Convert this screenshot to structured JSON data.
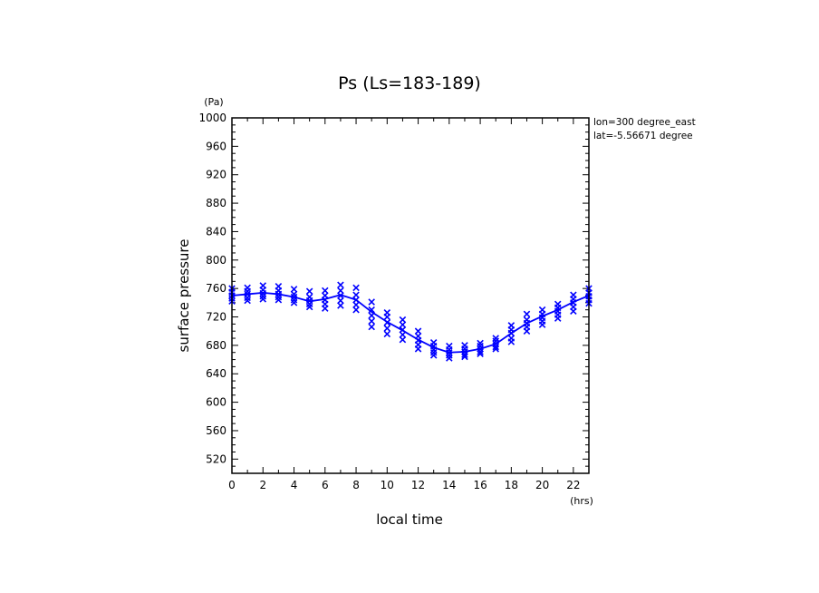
{
  "chart_data": {
    "type": "scatter",
    "title": "Ps (Ls=183-189)",
    "xlabel": "local time",
    "ylabel": "surface pressure",
    "x_unit": "(hrs)",
    "y_unit": "(Pa)",
    "xlim": [
      0,
      23
    ],
    "ylim": [
      500,
      1000
    ],
    "x_ticks": [
      0,
      2,
      4,
      6,
      8,
      10,
      12,
      14,
      16,
      18,
      20,
      22
    ],
    "y_ticks": [
      520,
      560,
      600,
      640,
      680,
      720,
      760,
      800,
      840,
      880,
      920,
      960,
      1000
    ],
    "annotations": [
      "lon=300 degree_east",
      "lat=-5.56671 degree"
    ],
    "grid": false,
    "color": "#0000ff",
    "series": [
      {
        "kind": "line",
        "x": [
          0,
          1,
          2,
          3,
          4,
          5,
          6,
          7,
          8,
          9,
          10,
          11,
          12,
          13,
          14,
          15,
          16,
          17,
          18,
          19,
          20,
          21,
          22,
          23
        ],
        "y": [
          750,
          752,
          754,
          752,
          748,
          742,
          745,
          751,
          744,
          727,
          713,
          701,
          688,
          677,
          670,
          671,
          675,
          682,
          697,
          711,
          721,
          730,
          741,
          750
        ]
      },
      {
        "kind": "points",
        "marker": "x",
        "x": [
          0,
          0,
          0,
          0,
          0,
          1,
          1,
          1,
          1,
          1,
          2,
          2,
          2,
          2,
          2,
          3,
          3,
          3,
          3,
          3,
          4,
          4,
          4,
          4,
          4,
          5,
          5,
          5,
          5,
          5,
          6,
          6,
          6,
          6,
          6,
          7,
          7,
          7,
          7,
          7,
          8,
          8,
          8,
          8,
          8,
          9,
          9,
          9,
          9,
          9,
          10,
          10,
          10,
          10,
          10,
          11,
          11,
          11,
          11,
          11,
          12,
          12,
          12,
          12,
          12,
          13,
          13,
          13,
          13,
          13,
          14,
          14,
          14,
          14,
          14,
          15,
          15,
          15,
          15,
          15,
          16,
          16,
          16,
          16,
          16,
          17,
          17,
          17,
          17,
          17,
          18,
          18,
          18,
          18,
          18,
          19,
          19,
          19,
          19,
          19,
          20,
          20,
          20,
          20,
          20,
          21,
          21,
          21,
          21,
          21,
          22,
          22,
          22,
          22,
          22,
          23,
          23,
          23,
          23,
          23
        ],
        "y": [
          742,
          746,
          750,
          755,
          760,
          743,
          747,
          752,
          756,
          761,
          745,
          749,
          753,
          758,
          764,
          744,
          748,
          752,
          757,
          763,
          740,
          744,
          748,
          752,
          759,
          734,
          738,
          743,
          748,
          756,
          732,
          738,
          744,
          750,
          757,
          736,
          743,
          750,
          757,
          765,
          730,
          737,
          744,
          751,
          761,
          706,
          714,
          722,
          730,
          741,
          696,
          704,
          712,
          720,
          726,
          688,
          695,
          702,
          709,
          716,
          675,
          681,
          687,
          693,
          700,
          666,
          670,
          674,
          679,
          684,
          662,
          666,
          670,
          674,
          679,
          664,
          667,
          671,
          675,
          680,
          668,
          671,
          675,
          679,
          683,
          675,
          678,
          682,
          686,
          690,
          685,
          690,
          697,
          702,
          708,
          700,
          706,
          711,
          716,
          724,
          709,
          714,
          719,
          724,
          730,
          718,
          723,
          728,
          733,
          738,
          728,
          734,
          740,
          745,
          751,
          739,
          744,
          749,
          754,
          760
        ]
      }
    ]
  }
}
